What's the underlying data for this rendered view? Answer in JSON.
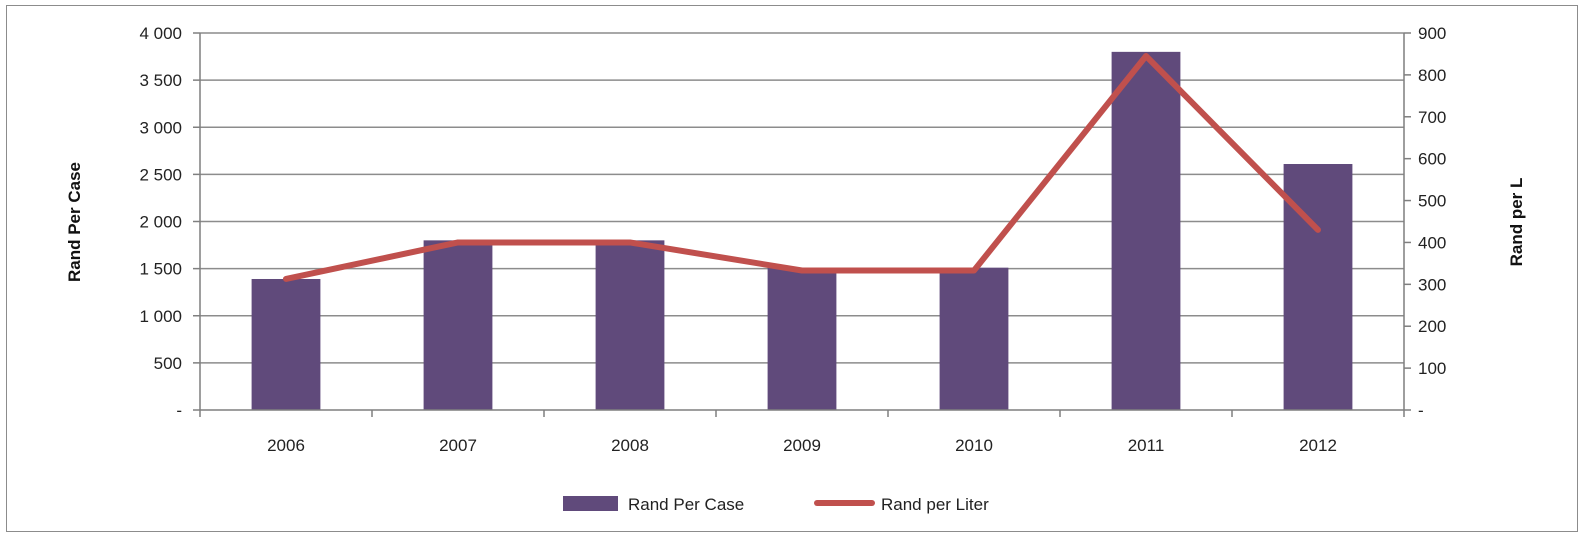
{
  "chart_data": {
    "type": "bar",
    "categories": [
      "2006",
      "2007",
      "2008",
      "2009",
      "2010",
      "2011",
      "2012"
    ],
    "series": [
      {
        "name": "Rand Per Case",
        "type": "bar",
        "axis": "left",
        "color": "#604a7b",
        "values": [
          1390,
          1800,
          1800,
          1510,
          1510,
          3800,
          2610
        ]
      },
      {
        "name": "Rand per Liter",
        "type": "line",
        "axis": "right",
        "color": "#c0504d",
        "values": [
          313,
          400,
          400,
          333,
          333,
          845,
          430
        ]
      }
    ],
    "ylabel": "Rand Per Case",
    "y2label": "Rand per L",
    "ylim": [
      0,
      4000
    ],
    "y2lim": [
      0,
      900
    ],
    "y_ticks": [
      "-",
      "500",
      "1 000",
      "1 500",
      "2 000",
      "2 500",
      "3 000",
      "3 500",
      "4 000"
    ],
    "y2_ticks": [
      "-",
      "100",
      "200",
      "300",
      "400",
      "500",
      "600",
      "700",
      "800",
      "900"
    ],
    "grid": true,
    "legend": "bottom-center"
  }
}
